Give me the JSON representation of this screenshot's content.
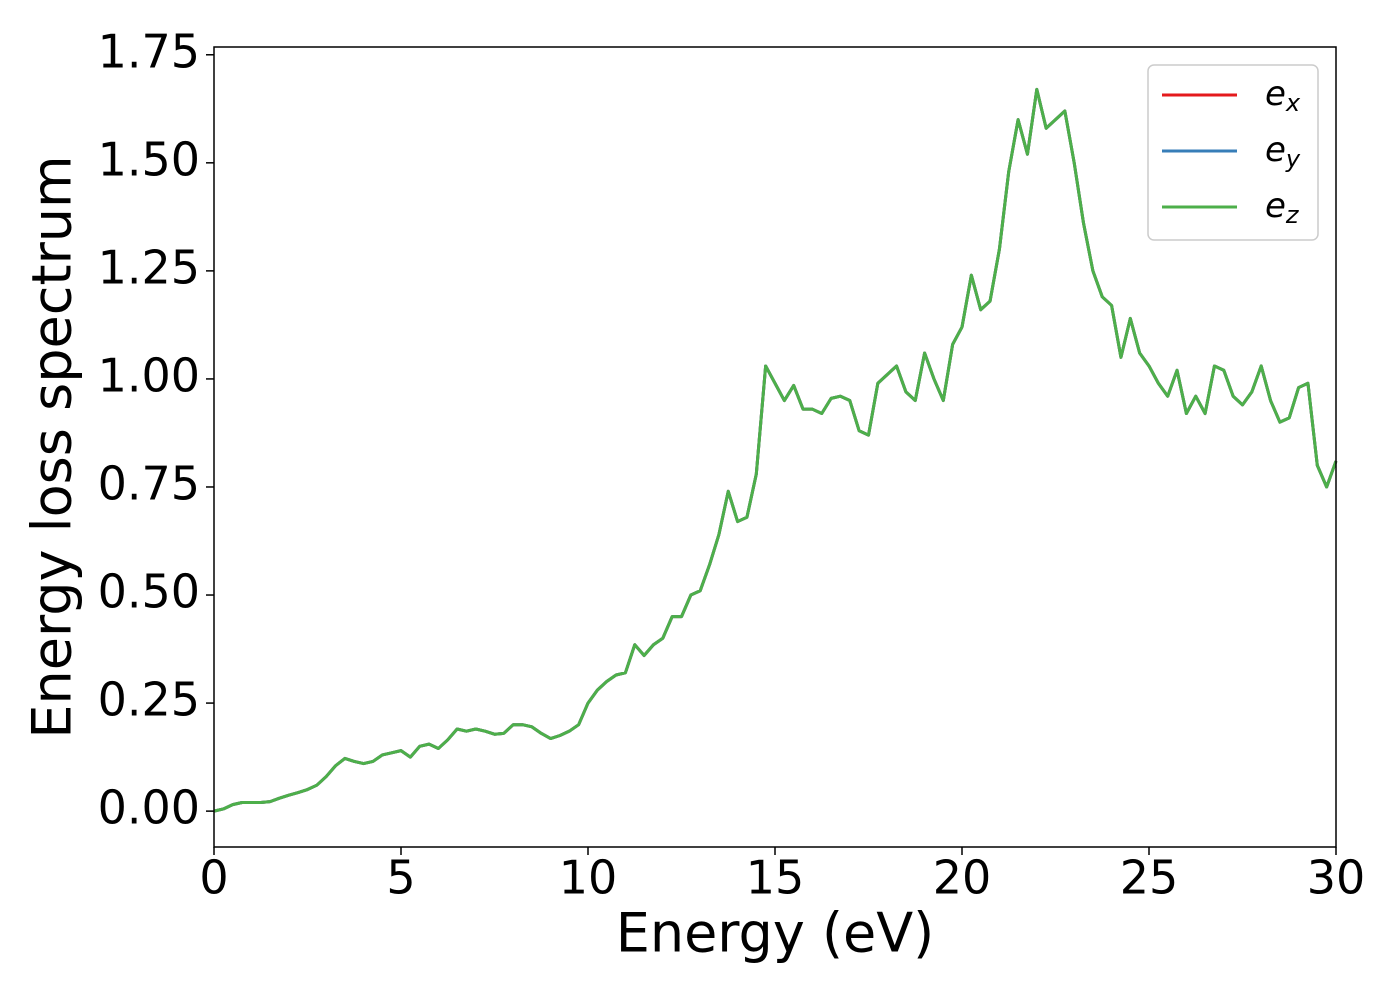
{
  "chart_data": {
    "type": "line",
    "x_label": "Energy (eV)",
    "y_label": "Energy loss spectrum",
    "xlim": [
      0,
      30
    ],
    "ylim": [
      -0.083,
      1.768
    ],
    "xticks": [
      0,
      5,
      10,
      15,
      20,
      25,
      30
    ],
    "yticks": [
      {
        "value": 0,
        "label": "0.00"
      },
      {
        "value": 0.25,
        "label": "0.25"
      },
      {
        "value": 0.5,
        "label": "0.50"
      },
      {
        "value": 0.75,
        "label": "0.75"
      },
      {
        "value": 1,
        "label": "1.00"
      },
      {
        "value": 1.25,
        "label": "1.25"
      },
      {
        "value": 1.5,
        "label": "1.50"
      },
      {
        "value": 1.75,
        "label": "1.75"
      }
    ],
    "legend": "upper right",
    "x": [
      0,
      0.25,
      0.5,
      0.75,
      1,
      1.25,
      1.5,
      1.75,
      2,
      2.25,
      2.5,
      2.75,
      3,
      3.25,
      3.5,
      3.75,
      4,
      4.25,
      4.5,
      4.75,
      5,
      5.25,
      5.5,
      5.75,
      6,
      6.25,
      6.5,
      6.75,
      7,
      7.25,
      7.5,
      7.75,
      8,
      8.25,
      8.5,
      8.75,
      9,
      9.25,
      9.5,
      9.75,
      10,
      10.25,
      10.5,
      10.75,
      11,
      11.25,
      11.5,
      11.75,
      12,
      12.25,
      12.5,
      12.75,
      13,
      13.25,
      13.5,
      13.75,
      14,
      14.25,
      14.5,
      14.75,
      15,
      15.25,
      15.5,
      15.75,
      16,
      16.25,
      16.5,
      16.75,
      17,
      17.25,
      17.5,
      17.75,
      18,
      18.25,
      18.5,
      18.75,
      19,
      19.25,
      19.5,
      19.75,
      20,
      20.25,
      20.5,
      20.75,
      21,
      21.25,
      21.5,
      21.75,
      22,
      22.25,
      22.5,
      22.75,
      23,
      23.25,
      23.5,
      23.75,
      24,
      24.25,
      24.5,
      24.75,
      25,
      25.25,
      25.5,
      25.75,
      26,
      26.25,
      26.5,
      26.75,
      27,
      27.25,
      27.5,
      27.75,
      28,
      28.25,
      28.5,
      28.75,
      29,
      29.25,
      29.5,
      29.75,
      30
    ],
    "series": [
      {
        "name": "ex",
        "color": "#e41a1c",
        "values": [
          0,
          0.005,
          0.015,
          0.02,
          0.02,
          0.02,
          0.022,
          0.03,
          0.037,
          0.043,
          0.05,
          0.06,
          0.08,
          0.105,
          0.122,
          0.115,
          0.11,
          0.115,
          0.13,
          0.135,
          0.14,
          0.125,
          0.15,
          0.155,
          0.145,
          0.165,
          0.19,
          0.185,
          0.19,
          0.185,
          0.178,
          0.18,
          0.2,
          0.2,
          0.195,
          0.18,
          0.168,
          0.175,
          0.185,
          0.2,
          0.25,
          0.28,
          0.3,
          0.315,
          0.32,
          0.385,
          0.36,
          0.385,
          0.4,
          0.45,
          0.45,
          0.5,
          0.51,
          0.57,
          0.64,
          0.74,
          0.67,
          0.68,
          0.78,
          1.03,
          0.99,
          0.95,
          0.985,
          0.93,
          0.93,
          0.92,
          0.955,
          0.96,
          0.95,
          0.88,
          0.87,
          0.99,
          1.01,
          1.03,
          0.97,
          0.95,
          1.06,
          1.0,
          0.95,
          1.08,
          1.12,
          1.24,
          1.16,
          1.18,
          1.3,
          1.48,
          1.6,
          1.52,
          1.67,
          1.58,
          1.6,
          1.62,
          1.5,
          1.36,
          1.25,
          1.19,
          1.17,
          1.05,
          1.14,
          1.06,
          1.03,
          0.99,
          0.96,
          1.02,
          0.92,
          0.96,
          0.92,
          1.03,
          1.02,
          0.96,
          0.94,
          0.97,
          1.03,
          0.95,
          0.9,
          0.91,
          0.98,
          0.99,
          0.8,
          0.75,
          0.81
        ]
      },
      {
        "name": "ey",
        "color": "#377eb8",
        "values": [
          0,
          0.005,
          0.015,
          0.02,
          0.02,
          0.02,
          0.022,
          0.03,
          0.037,
          0.043,
          0.05,
          0.06,
          0.08,
          0.105,
          0.122,
          0.115,
          0.11,
          0.115,
          0.13,
          0.135,
          0.14,
          0.125,
          0.15,
          0.155,
          0.145,
          0.165,
          0.19,
          0.185,
          0.19,
          0.185,
          0.178,
          0.18,
          0.2,
          0.2,
          0.195,
          0.18,
          0.168,
          0.175,
          0.185,
          0.2,
          0.25,
          0.28,
          0.3,
          0.315,
          0.32,
          0.385,
          0.36,
          0.385,
          0.4,
          0.45,
          0.45,
          0.5,
          0.51,
          0.57,
          0.64,
          0.74,
          0.67,
          0.68,
          0.78,
          1.03,
          0.99,
          0.95,
          0.985,
          0.93,
          0.93,
          0.92,
          0.955,
          0.96,
          0.95,
          0.88,
          0.87,
          0.99,
          1.01,
          1.03,
          0.97,
          0.95,
          1.06,
          1.0,
          0.95,
          1.08,
          1.12,
          1.24,
          1.16,
          1.18,
          1.3,
          1.48,
          1.6,
          1.52,
          1.67,
          1.58,
          1.6,
          1.62,
          1.5,
          1.36,
          1.25,
          1.19,
          1.17,
          1.05,
          1.14,
          1.06,
          1.03,
          0.99,
          0.96,
          1.02,
          0.92,
          0.96,
          0.92,
          1.03,
          1.02,
          0.96,
          0.94,
          0.97,
          1.03,
          0.95,
          0.9,
          0.91,
          0.98,
          0.99,
          0.8,
          0.75,
          0.81
        ]
      },
      {
        "name": "ez",
        "color": "#4daf4a",
        "values": [
          0,
          0.005,
          0.015,
          0.02,
          0.02,
          0.02,
          0.022,
          0.03,
          0.037,
          0.043,
          0.05,
          0.06,
          0.08,
          0.105,
          0.122,
          0.115,
          0.11,
          0.115,
          0.13,
          0.135,
          0.14,
          0.125,
          0.15,
          0.155,
          0.145,
          0.165,
          0.19,
          0.185,
          0.19,
          0.185,
          0.178,
          0.18,
          0.2,
          0.2,
          0.195,
          0.18,
          0.168,
          0.175,
          0.185,
          0.2,
          0.25,
          0.28,
          0.3,
          0.315,
          0.32,
          0.385,
          0.36,
          0.385,
          0.4,
          0.45,
          0.45,
          0.5,
          0.51,
          0.57,
          0.64,
          0.74,
          0.67,
          0.68,
          0.78,
          1.03,
          0.99,
          0.95,
          0.985,
          0.93,
          0.93,
          0.92,
          0.955,
          0.96,
          0.95,
          0.88,
          0.87,
          0.99,
          1.01,
          1.03,
          0.97,
          0.95,
          1.06,
          1.0,
          0.95,
          1.08,
          1.12,
          1.24,
          1.16,
          1.18,
          1.3,
          1.48,
          1.6,
          1.52,
          1.67,
          1.58,
          1.6,
          1.62,
          1.5,
          1.36,
          1.25,
          1.19,
          1.17,
          1.05,
          1.14,
          1.06,
          1.03,
          0.99,
          0.96,
          1.02,
          0.92,
          0.96,
          0.92,
          1.03,
          1.02,
          0.96,
          0.94,
          0.97,
          1.03,
          0.95,
          0.9,
          0.91,
          0.98,
          0.99,
          0.8,
          0.75,
          0.81
        ]
      }
    ]
  }
}
